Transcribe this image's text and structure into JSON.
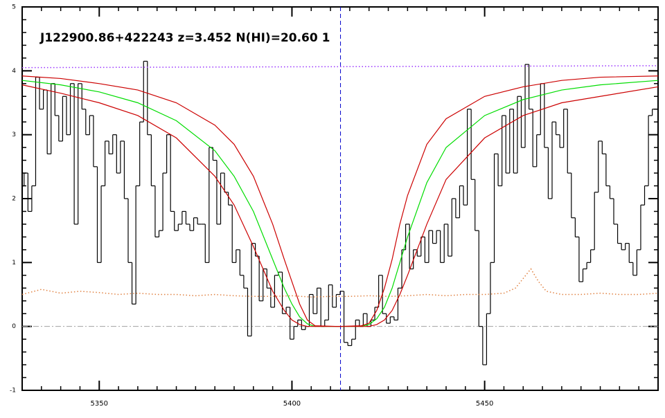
{
  "chart_data": {
    "type": "spectrum",
    "title": "J122900.86+422243 z=3.452 N(HI)=20.60 1",
    "xlim": [
      5330,
      5495
    ],
    "ylim": [
      -1,
      5
    ],
    "xticks": [
      5350,
      5400,
      5450
    ],
    "yticks": [
      -1,
      0,
      1,
      2,
      3,
      4,
      5
    ],
    "xminor": 5,
    "yminor": 0.2,
    "hline": 0,
    "vline": 5412.6,
    "hline_color": "#a0a0a0",
    "vline_color": "#0000cc",
    "series": [
      {
        "style": "step",
        "color": "#000000",
        "x": [
          5330,
          5331,
          5332,
          5333,
          5334,
          5335,
          5336,
          5337,
          5338,
          5339,
          5340,
          5341,
          5342,
          5343,
          5344,
          5345,
          5346,
          5347,
          5348,
          5349,
          5350,
          5351,
          5352,
          5353,
          5354,
          5355,
          5356,
          5357,
          5358,
          5359,
          5360,
          5361,
          5362,
          5363,
          5364,
          5365,
          5366,
          5367,
          5368,
          5369,
          5370,
          5371,
          5372,
          5373,
          5374,
          5375,
          5376,
          5377,
          5378,
          5379,
          5380,
          5381,
          5382,
          5383,
          5384,
          5385,
          5386,
          5387,
          5388,
          5389,
          5390,
          5391,
          5392,
          5393,
          5394,
          5395,
          5396,
          5397,
          5398,
          5399,
          5400,
          5401,
          5402,
          5403,
          5404,
          5405,
          5406,
          5407,
          5408,
          5409,
          5410,
          5411,
          5412,
          5413,
          5414,
          5415,
          5416,
          5417,
          5418,
          5419,
          5420,
          5421,
          5422,
          5423,
          5424,
          5425,
          5426,
          5427,
          5428,
          5429,
          5430,
          5431,
          5432,
          5433,
          5434,
          5435,
          5436,
          5437,
          5438,
          5439,
          5440,
          5441,
          5442,
          5443,
          5444,
          5445,
          5446,
          5447,
          5448,
          5449,
          5450,
          5451,
          5452,
          5453,
          5454,
          5455,
          5456,
          5457,
          5458,
          5459,
          5460,
          5461,
          5462,
          5463,
          5464,
          5465,
          5466,
          5467,
          5468,
          5469,
          5470,
          5471,
          5472,
          5473,
          5474,
          5475,
          5476,
          5477,
          5478,
          5479,
          5480,
          5481,
          5482,
          5483,
          5484,
          5485,
          5486,
          5487,
          5488,
          5489,
          5490,
          5491,
          5492,
          5493,
          5494
        ],
        "values": [
          2.2,
          2.4,
          1.8,
          2.2,
          3.9,
          3.4,
          3.7,
          2.7,
          3.8,
          3.3,
          2.9,
          3.6,
          3.0,
          3.8,
          1.6,
          3.8,
          3.4,
          3.0,
          3.3,
          2.5,
          1.0,
          2.2,
          2.9,
          2.7,
          3.0,
          2.4,
          2.9,
          2.0,
          1.0,
          0.35,
          2.2,
          3.2,
          4.15,
          3.0,
          2.2,
          1.4,
          1.5,
          2.4,
          3.0,
          1.8,
          1.5,
          1.6,
          1.8,
          1.6,
          1.5,
          1.7,
          1.6,
          1.6,
          1.0,
          2.8,
          2.6,
          1.6,
          2.4,
          2.1,
          1.9,
          1.0,
          1.2,
          0.8,
          0.6,
          -0.15,
          1.3,
          1.1,
          0.4,
          0.9,
          0.6,
          0.3,
          0.8,
          0.85,
          0.2,
          0.3,
          -0.2,
          0.0,
          0.1,
          -0.05,
          0.0,
          0.5,
          0.2,
          0.6,
          0.0,
          0.1,
          0.65,
          0.3,
          0.5,
          0.55,
          -0.25,
          -0.3,
          -0.2,
          0.1,
          0.0,
          0.2,
          0.0,
          0.1,
          0.3,
          0.8,
          0.2,
          0.05,
          0.15,
          0.1,
          0.6,
          1.2,
          1.6,
          0.9,
          1.2,
          1.1,
          1.4,
          1.0,
          1.5,
          1.3,
          1.5,
          1.0,
          1.6,
          1.1,
          2.0,
          1.7,
          2.2,
          1.9,
          3.4,
          2.3,
          1.5,
          0.0,
          -0.6,
          0.2,
          1.0,
          2.7,
          2.2,
          3.3,
          2.4,
          3.4,
          2.4,
          3.6,
          2.8,
          4.1,
          3.4,
          2.5,
          3.0,
          3.8,
          2.8,
          2.0,
          3.2,
          3.0,
          2.8,
          3.4,
          2.4,
          1.7,
          1.4,
          0.7,
          0.9,
          1.0,
          1.2,
          2.1,
          2.9,
          2.7,
          2.2,
          2.0,
          1.6,
          1.3,
          1.2,
          1.3,
          1.0,
          0.8,
          1.2,
          1.9,
          2.2,
          3.3,
          3.4
        ]
      },
      {
        "style": "dotted",
        "color": "#9933ff",
        "x": [
          5330,
          5495
        ],
        "values": [
          4.05,
          4.08
        ]
      },
      {
        "style": "dotted",
        "color": "#e08040",
        "x": [
          5330,
          5335,
          5340,
          5345,
          5350,
          5355,
          5360,
          5365,
          5370,
          5375,
          5380,
          5385,
          5390,
          5395,
          5400,
          5405,
          5410,
          5415,
          5420,
          5425,
          5430,
          5435,
          5440,
          5445,
          5450,
          5455,
          5458,
          5460,
          5462,
          5464,
          5466,
          5470,
          5475,
          5480,
          5485,
          5490,
          5495
        ],
        "values": [
          0.5,
          0.58,
          0.52,
          0.55,
          0.53,
          0.5,
          0.52,
          0.5,
          0.5,
          0.48,
          0.5,
          0.48,
          0.47,
          0.47,
          0.48,
          0.46,
          0.47,
          0.47,
          0.48,
          0.47,
          0.48,
          0.5,
          0.48,
          0.5,
          0.5,
          0.52,
          0.6,
          0.75,
          0.9,
          0.7,
          0.55,
          0.5,
          0.5,
          0.52,
          0.5,
          0.5,
          0.52
        ]
      },
      {
        "style": "line",
        "color": "#00dd00",
        "x": [
          5330,
          5340,
          5350,
          5360,
          5370,
          5380,
          5385,
          5390,
          5395,
          5398,
          5400,
          5402,
          5404,
          5406,
          5412,
          5418,
          5420,
          5422,
          5424,
          5426,
          5428,
          5430,
          5435,
          5440,
          5450,
          5460,
          5470,
          5480,
          5495
        ],
        "values": [
          3.85,
          3.78,
          3.67,
          3.5,
          3.22,
          2.75,
          2.35,
          1.8,
          1.05,
          0.6,
          0.35,
          0.15,
          0.04,
          0.0,
          0.0,
          0.0,
          0.03,
          0.12,
          0.3,
          0.6,
          1.0,
          1.4,
          2.25,
          2.8,
          3.3,
          3.55,
          3.7,
          3.78,
          3.85
        ]
      },
      {
        "style": "line",
        "color": "#cc0000",
        "x": [
          5330,
          5340,
          5350,
          5360,
          5370,
          5380,
          5385,
          5390,
          5395,
          5398,
          5400,
          5402,
          5404,
          5406,
          5412,
          5418,
          5420,
          5422,
          5424,
          5426,
          5428,
          5430,
          5435,
          5440,
          5450,
          5460,
          5470,
          5480,
          5495
        ],
        "values": [
          3.92,
          3.88,
          3.8,
          3.7,
          3.5,
          3.15,
          2.85,
          2.35,
          1.6,
          1.05,
          0.7,
          0.35,
          0.1,
          0.01,
          0.0,
          0.01,
          0.05,
          0.25,
          0.6,
          1.05,
          1.6,
          2.05,
          2.85,
          3.25,
          3.6,
          3.75,
          3.85,
          3.9,
          3.92
        ]
      },
      {
        "style": "line",
        "color": "#cc0000",
        "x": [
          5330,
          5340,
          5350,
          5360,
          5370,
          5380,
          5385,
          5390,
          5395,
          5398,
          5400,
          5402,
          5404,
          5406,
          5412,
          5418,
          5420,
          5422,
          5424,
          5426,
          5428,
          5430,
          5435,
          5440,
          5450,
          5460,
          5470,
          5480,
          5495
        ],
        "values": [
          3.78,
          3.65,
          3.5,
          3.3,
          2.95,
          2.35,
          1.9,
          1.25,
          0.55,
          0.25,
          0.1,
          0.03,
          0.0,
          0.0,
          0.0,
          0.0,
          0.0,
          0.03,
          0.1,
          0.25,
          0.5,
          0.8,
          1.6,
          2.3,
          2.95,
          3.3,
          3.5,
          3.6,
          3.75
        ]
      }
    ]
  }
}
